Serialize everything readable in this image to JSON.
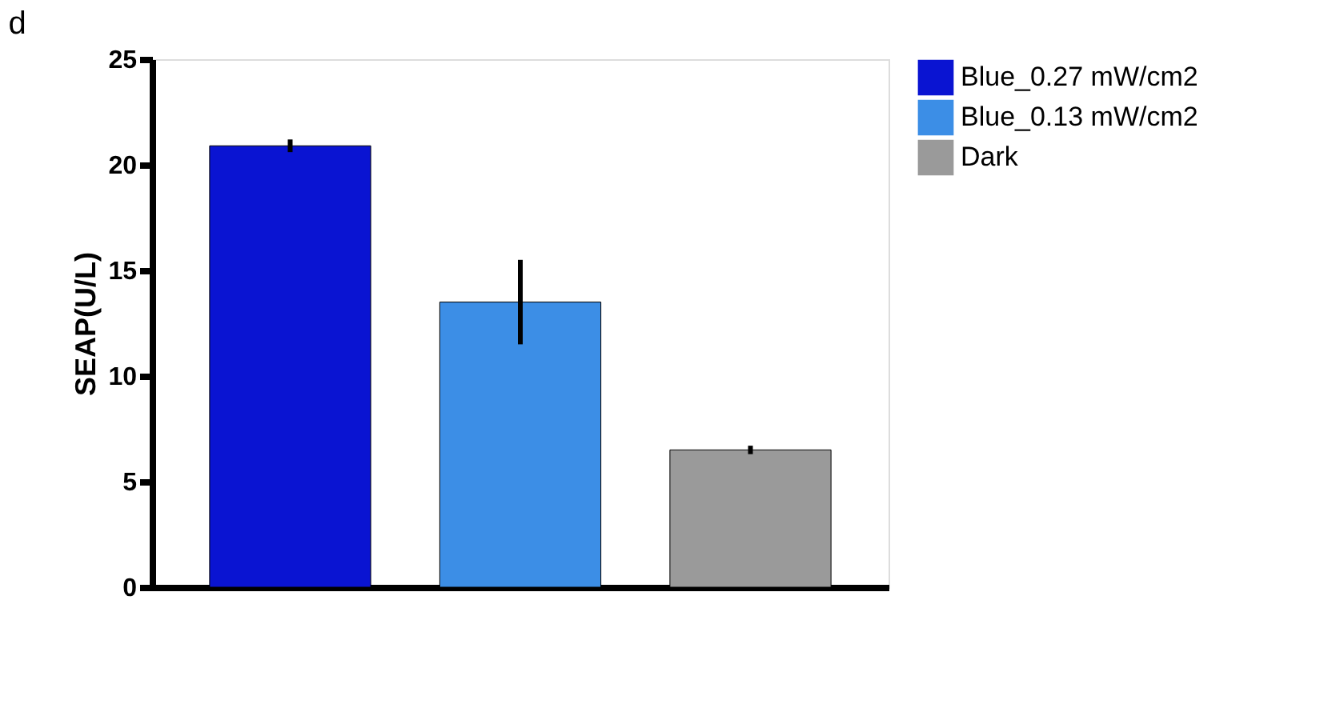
{
  "chart_data": {
    "type": "bar",
    "title": "d",
    "ylabel": "SEAP(U/L)",
    "categories": [
      null,
      null,
      null
    ],
    "series": [
      {
        "name": "Blue_0.27 mW/cm2",
        "color": "#0a14d2",
        "values": [
          20.9,
          null,
          null
        ],
        "errors": [
          0.3,
          null,
          null
        ]
      },
      {
        "name": "Blue_0.13 mW/cm2",
        "color": "#3c8ee6",
        "values": [
          null,
          13.5,
          null
        ],
        "errors": [
          null,
          2.0,
          null
        ]
      },
      {
        "name": "Dark",
        "color": "#9a9a9a",
        "values": [
          null,
          null,
          6.5
        ],
        "errors": [
          null,
          null,
          0.2
        ]
      }
    ],
    "ylim": [
      0,
      25
    ],
    "yticks": [
      0,
      5,
      10,
      15,
      20,
      25
    ],
    "grid": false,
    "legend": "top right",
    "tick_labels": "y"
  }
}
